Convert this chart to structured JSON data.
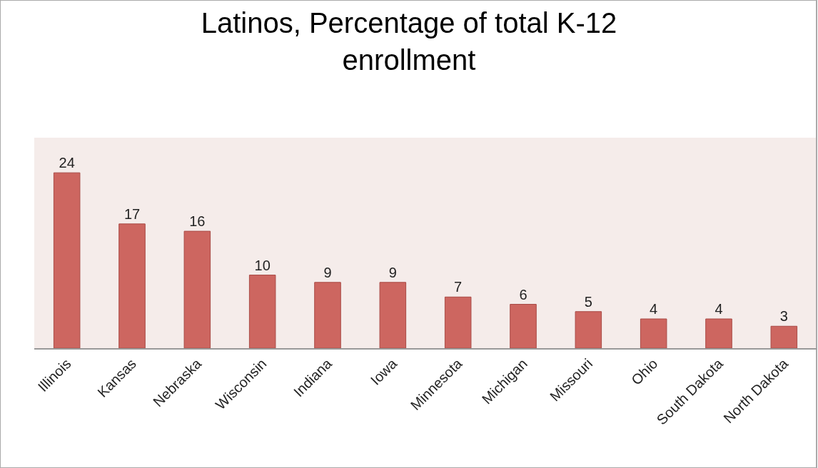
{
  "chart_data": {
    "type": "bar",
    "title": "Latinos, Percentage of total K-12\nenrollment",
    "categories": [
      "Illinois",
      "Kansas",
      "Nebraska",
      "Wisconsin",
      "Indiana",
      "Iowa",
      "Minnesota",
      "Michigan",
      "Missouri",
      "Ohio",
      "South Dakota",
      "North Dakota"
    ],
    "values": [
      24,
      17,
      16,
      10,
      9,
      9,
      7,
      6,
      5,
      4,
      4,
      3
    ],
    "color": "#cd6660",
    "data_labels": true,
    "grid": false,
    "legend": false
  }
}
